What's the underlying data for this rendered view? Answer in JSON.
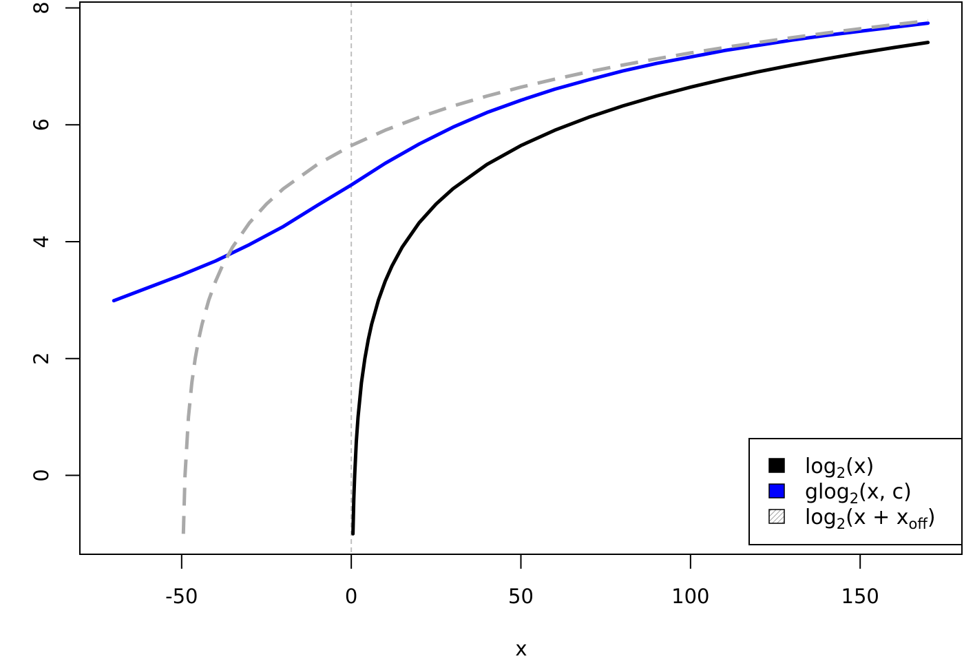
{
  "chart_data": {
    "type": "line",
    "xlabel": "x",
    "ylabel": "",
    "xlim": [
      -80,
      180
    ],
    "ylim": [
      -1.35,
      8.1
    ],
    "x_ticks": [
      -50,
      0,
      50,
      100,
      150
    ],
    "x_tick_labels": [
      "-50",
      "0",
      "50",
      "100",
      "150"
    ],
    "y_ticks": [
      0,
      2,
      4,
      6,
      8
    ],
    "y_tick_labels": [
      "0",
      "2",
      "4",
      "6",
      "8"
    ],
    "grid": false,
    "vline": {
      "x": 0,
      "color": "#bebebe",
      "style": "dashed"
    },
    "legend_position": "bottom-right",
    "legend": [
      {
        "base": "log",
        "sub": "2",
        "rest": "(x)",
        "color": "#000000",
        "fill": "solid"
      },
      {
        "base": "glog",
        "sub": "2",
        "rest": "(x, c)",
        "color": "#0000ff",
        "fill": "solid"
      },
      {
        "base": "log",
        "sub": "2",
        "rest": "(x + x",
        "rest_sub": "off",
        "close": ")",
        "color": "#a9a9a9",
        "fill": "hatched"
      }
    ],
    "series": [
      {
        "key": "log2",
        "color": "#000000",
        "dash": "solid",
        "x": [
          0.5,
          0.75,
          1,
          1.5,
          2,
          3,
          4,
          5,
          6,
          8,
          10,
          12,
          15,
          20,
          25,
          30,
          40,
          50,
          60,
          70,
          80,
          90,
          100,
          110,
          120,
          130,
          140,
          150,
          160,
          170
        ],
        "y": [
          -1,
          -0.415,
          0,
          0.585,
          1,
          1.585,
          2,
          2.322,
          2.585,
          3,
          3.322,
          3.585,
          3.907,
          4.322,
          4.644,
          4.907,
          5.322,
          5.644,
          5.907,
          6.129,
          6.322,
          6.492,
          6.644,
          6.781,
          6.907,
          7.022,
          7.129,
          7.229,
          7.322,
          7.409
        ]
      },
      {
        "key": "glog2",
        "color": "#0000ff",
        "dash": "solid",
        "x": [
          -70,
          -60,
          -50,
          -40,
          -30,
          -20,
          -10,
          0,
          10,
          20,
          30,
          40,
          50,
          60,
          70,
          80,
          90,
          100,
          110,
          120,
          130,
          140,
          150,
          160,
          170
        ],
        "y": [
          2.99,
          3.21,
          3.43,
          3.67,
          3.95,
          4.26,
          4.62,
          4.97,
          5.34,
          5.67,
          5.96,
          6.21,
          6.42,
          6.61,
          6.77,
          6.92,
          7.05,
          7.16,
          7.27,
          7.36,
          7.45,
          7.53,
          7.6,
          7.67,
          7.74
        ]
      },
      {
        "key": "log2_offset",
        "color": "#a9a9a9",
        "dash": "dashed",
        "x": [
          -49.5,
          -49,
          -48,
          -47,
          -46,
          -45,
          -44,
          -42,
          -40,
          -38,
          -35,
          -30,
          -25,
          -20,
          -10,
          0,
          10,
          20,
          30,
          40,
          50,
          60,
          70,
          80,
          90,
          100,
          110,
          120,
          130,
          140,
          150,
          160,
          170
        ],
        "y": [
          -1,
          0,
          1,
          1.585,
          2,
          2.322,
          2.585,
          3,
          3.322,
          3.585,
          3.907,
          4.322,
          4.644,
          4.907,
          5.322,
          5.644,
          5.907,
          6.129,
          6.322,
          6.492,
          6.644,
          6.781,
          6.907,
          7.022,
          7.129,
          7.229,
          7.322,
          7.409,
          7.492,
          7.57,
          7.644,
          7.714,
          7.781
        ]
      }
    ]
  }
}
